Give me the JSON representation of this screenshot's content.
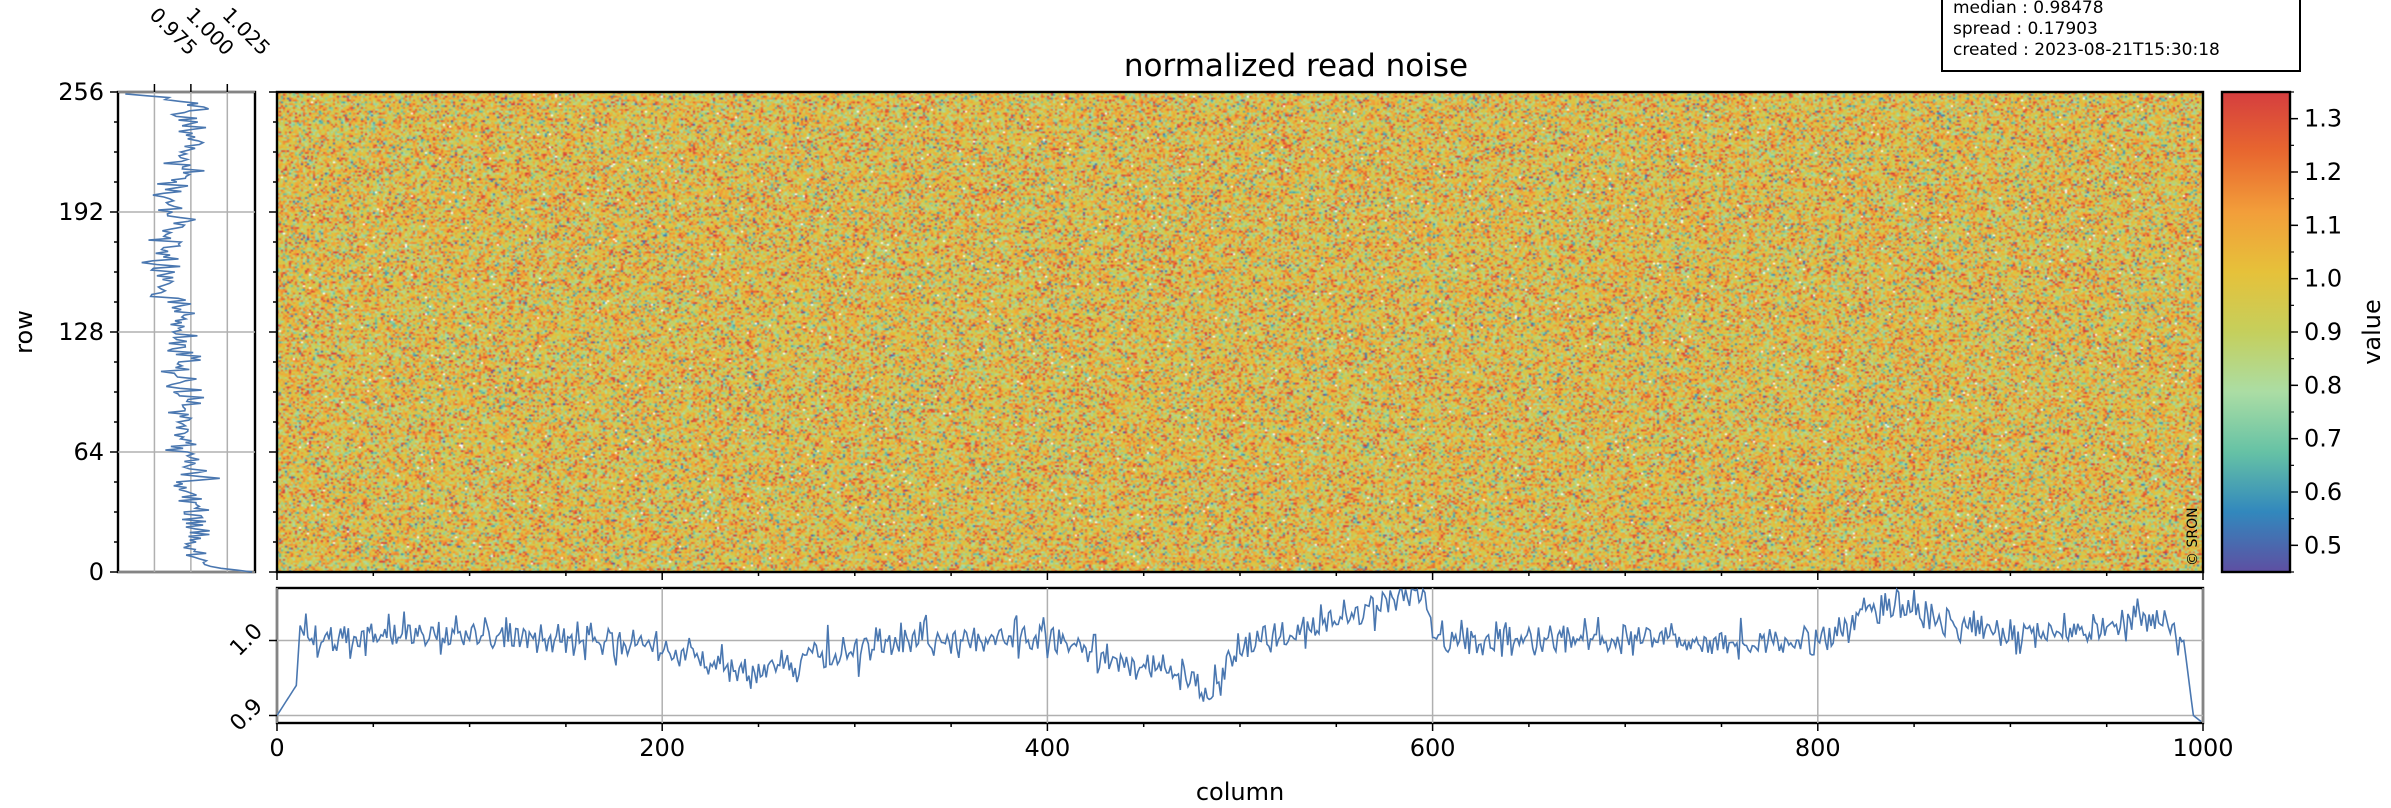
{
  "figure": {
    "title": "normalized read noise",
    "xlabel": "column",
    "ylabel": "row",
    "colorbar_label": "value",
    "copyright": "© SRON",
    "info": {
      "median": "median : 0.98478",
      "spread": "spread : 0.17903",
      "created": "created : 2023-08-21T15:30:18"
    }
  },
  "colors": {
    "line": "#4a77b0",
    "grid": "#b0b0b0",
    "colormap": [
      "#5e4fa2",
      "#3288bd",
      "#66c2a5",
      "#abdda4",
      "#c5cf5c",
      "#e6c13a",
      "#f29e3a",
      "#e8672f",
      "#d53e3f"
    ]
  },
  "chart_data": [
    {
      "type": "heatmap",
      "title": "normalized read noise",
      "xlabel": "column",
      "ylabel": "row",
      "xlim": [
        0,
        1000
      ],
      "ylim": [
        0,
        256
      ],
      "xticks": [
        0,
        200,
        400,
        600,
        800,
        1000
      ],
      "yticks": [
        0,
        64,
        128,
        192,
        256
      ],
      "color_range": [
        0.45,
        1.35
      ],
      "colorbar_ticks": [
        0.5,
        0.6,
        0.7,
        0.8,
        0.9,
        1.0,
        1.1,
        1.2,
        1.3
      ],
      "colorbar_tick_labels": [
        "0.5",
        "0.6",
        "0.7",
        "0.8",
        "0.9",
        "1.0",
        "1.1",
        "1.2",
        "1.3"
      ],
      "colorbar_label": "value",
      "median": 0.98478,
      "spread": 0.17903
    },
    {
      "type": "line",
      "description_axis": "column",
      "xlim": [
        0,
        1000
      ],
      "ylim": [
        0.89,
        1.07
      ],
      "yticks": [
        0.9,
        1.0
      ],
      "ytick_labels": [
        "0.9",
        "1.0"
      ],
      "grid": true,
      "x": [
        0,
        5,
        10,
        12,
        15,
        100,
        200,
        245,
        330,
        400,
        475,
        485,
        500,
        595,
        600,
        700,
        800,
        835,
        900,
        975,
        990,
        995,
        1000
      ],
      "y": [
        0.9,
        0.92,
        0.94,
        1.02,
        1.0,
        1.01,
        0.99,
        0.96,
        1.0,
        1.0,
        0.95,
        0.93,
        0.99,
        1.07,
        1.0,
        1.0,
        1.0,
        1.05,
        1.0,
        1.03,
        1.0,
        0.9,
        0.89
      ]
    },
    {
      "type": "line",
      "description_axis": "row",
      "xlim": [
        0.95,
        1.044
      ],
      "xticks": [
        0.975,
        1.0,
        1.025
      ],
      "xtick_labels": [
        "0.975",
        "1.000",
        "1.025"
      ],
      "grid": true,
      "y": [
        0,
        3,
        8,
        20,
        40,
        60,
        70,
        80,
        100,
        128,
        150,
        160,
        175,
        190,
        200,
        210,
        220,
        225,
        230,
        240,
        250,
        253,
        255
      ],
      "x": [
        1.042,
        1.01,
        1.0,
        1.005,
        1.0,
        1.002,
        0.998,
        0.994,
        0.995,
        0.994,
        0.985,
        0.98,
        0.985,
        0.99,
        0.986,
        0.994,
        0.996,
        1.0,
        1.002,
        1.0,
        0.998,
        0.985,
        0.955
      ]
    }
  ]
}
